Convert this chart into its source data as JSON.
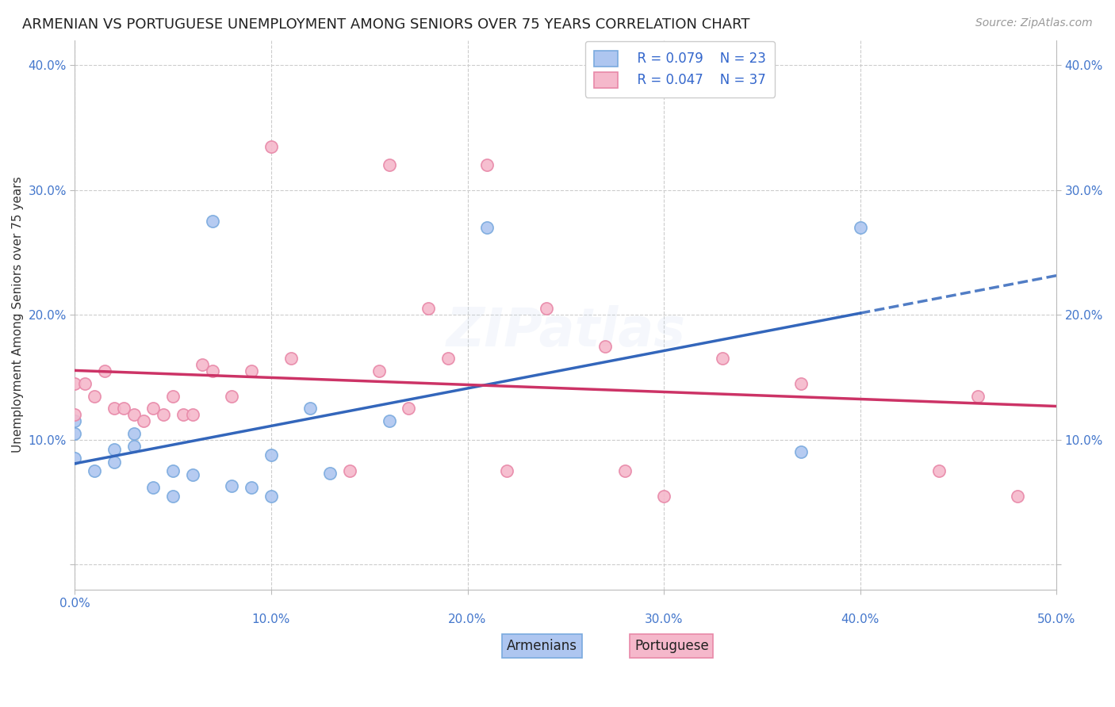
{
  "title": "ARMENIAN VS PORTUGUESE UNEMPLOYMENT AMONG SENIORS OVER 75 YEARS CORRELATION CHART",
  "source": "Source: ZipAtlas.com",
  "ylabel": "Unemployment Among Seniors over 75 years",
  "watermark": "ZIPatlas",
  "xlim": [
    0.0,
    0.5
  ],
  "ylim": [
    -0.02,
    0.42
  ],
  "xticks": [
    0.0,
    0.1,
    0.2,
    0.3,
    0.4,
    0.5
  ],
  "yticks": [
    0.0,
    0.1,
    0.2,
    0.3,
    0.4
  ],
  "xtick_labels": [
    "0.0%",
    "",
    "",
    "",
    "",
    ""
  ],
  "xtick_labels_bottom": [
    "0.0%",
    "10.0%",
    "20.0%",
    "30.0%",
    "40.0%",
    "50.0%"
  ],
  "ytick_labels_left": [
    "",
    "10.0%",
    "20.0%",
    "30.0%",
    "40.0%"
  ],
  "ytick_labels_right": [
    "",
    "10.0%",
    "20.0%",
    "30.0%",
    "40.0%"
  ],
  "legend_R_armenian": "R = 0.079",
  "legend_N_armenian": "N = 23",
  "legend_R_portuguese": "R = 0.047",
  "legend_N_portuguese": "N = 37",
  "armenian_color": "#aec6f0",
  "armenian_edge": "#7aaade",
  "portuguese_color": "#f5b8cb",
  "portuguese_edge": "#e888a8",
  "armenian_line_color": "#3366bb",
  "portuguese_line_color": "#cc3366",
  "armenian_points_x": [
    0.0,
    0.0,
    0.0,
    0.01,
    0.02,
    0.02,
    0.03,
    0.03,
    0.04,
    0.05,
    0.05,
    0.06,
    0.07,
    0.08,
    0.09,
    0.1,
    0.1,
    0.12,
    0.13,
    0.16,
    0.21,
    0.37,
    0.4
  ],
  "armenian_points_y": [
    0.085,
    0.105,
    0.115,
    0.075,
    0.082,
    0.092,
    0.095,
    0.105,
    0.062,
    0.055,
    0.075,
    0.072,
    0.275,
    0.063,
    0.062,
    0.055,
    0.088,
    0.125,
    0.073,
    0.115,
    0.27,
    0.09,
    0.27
  ],
  "portuguese_points_x": [
    0.0,
    0.0,
    0.005,
    0.01,
    0.015,
    0.02,
    0.025,
    0.03,
    0.035,
    0.04,
    0.045,
    0.05,
    0.055,
    0.06,
    0.065,
    0.07,
    0.08,
    0.09,
    0.1,
    0.11,
    0.14,
    0.155,
    0.16,
    0.17,
    0.18,
    0.19,
    0.21,
    0.22,
    0.24,
    0.27,
    0.28,
    0.3,
    0.33,
    0.37,
    0.44,
    0.46,
    0.48
  ],
  "portuguese_points_y": [
    0.12,
    0.145,
    0.145,
    0.135,
    0.155,
    0.125,
    0.125,
    0.12,
    0.115,
    0.125,
    0.12,
    0.135,
    0.12,
    0.12,
    0.16,
    0.155,
    0.135,
    0.155,
    0.335,
    0.165,
    0.075,
    0.155,
    0.32,
    0.125,
    0.205,
    0.165,
    0.32,
    0.075,
    0.205,
    0.175,
    0.075,
    0.055,
    0.165,
    0.145,
    0.075,
    0.135,
    0.055
  ],
  "fig_width": 14.06,
  "fig_height": 8.92,
  "dpi": 100,
  "background_color": "#ffffff",
  "grid_color": "#cccccc",
  "title_fontsize": 13,
  "source_fontsize": 10,
  "axis_label_fontsize": 11,
  "tick_fontsize": 11,
  "legend_fontsize": 12,
  "watermark_fontsize": 48,
  "watermark_alpha": 0.18,
  "scatter_size": 120
}
